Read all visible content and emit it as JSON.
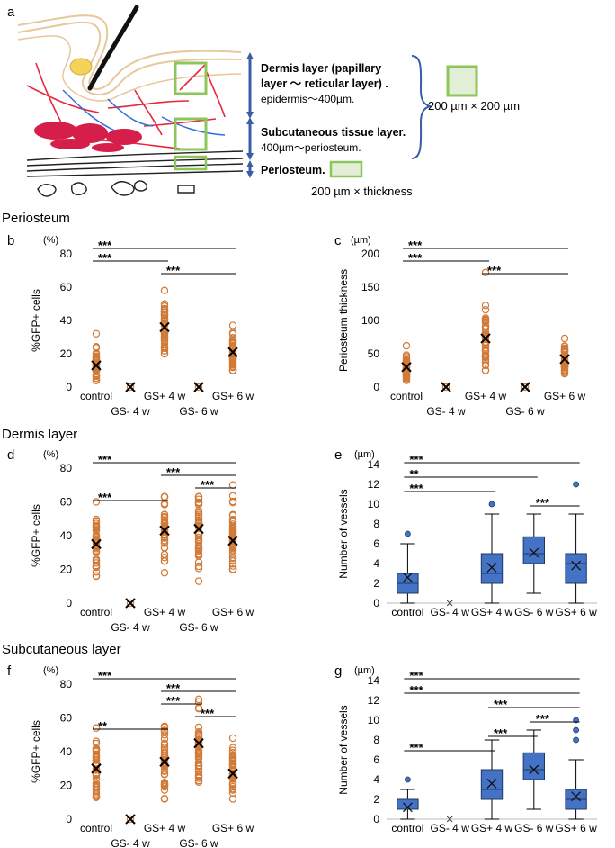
{
  "figure": {
    "panel_a_label": "a",
    "section_titles": [
      "Periosteum",
      "Dermis layer",
      "Subcutaneous layer"
    ],
    "schematic": {
      "dermis_title": "Dermis layer (papillary",
      "dermis_title2": "layer 〜 reticular layer) .",
      "dermis_range": "epidermis〜400µm.",
      "subq_title": "Subcutaneous tissue layer.",
      "subq_range": "400µm〜periosteum.",
      "periosteum_title": "Periosteum.",
      "roi_size_square": "200 µm × 200 µm",
      "roi_size_periosteum": "200 µm × thickness"
    },
    "colors": {
      "orange": "#d07a38",
      "blue": "#4472c4",
      "box_stroke": "#1f3864",
      "green": "#8dc65b",
      "green_fill": "#e2efd6",
      "arrow_blue": "#3a5da8"
    }
  },
  "chart_data": [
    {
      "panel": "b",
      "type": "scatter",
      "title": "Periosteum",
      "yunit": "(%)",
      "ylabel": "%GFP+ cells",
      "ylim": [
        0,
        80
      ],
      "yticks": [
        "0",
        "20",
        "40",
        "60",
        "80"
      ],
      "categories": [
        "control",
        "GS- 4 w",
        "GS+ 4 w",
        "GS- 6 w",
        "GS+ 6 w"
      ],
      "means": [
        13,
        0,
        36,
        0,
        21
      ],
      "ranges": [
        [
          4,
          32
        ],
        [
          0,
          0
        ],
        [
          20,
          58
        ],
        [
          0,
          0
        ],
        [
          10,
          37
        ]
      ],
      "sig": [
        {
          "from": 0,
          "to": 4,
          "label": "***"
        },
        {
          "from": 0,
          "to": 2,
          "label": "***"
        },
        {
          "from": 2,
          "to": 4,
          "label": "***"
        }
      ]
    },
    {
      "panel": "c",
      "type": "scatter",
      "yunit": "(µm)",
      "ylabel": "Periosteum thickness",
      "ylim": [
        0,
        200
      ],
      "yticks": [
        "0",
        "50",
        "100",
        "150",
        "200"
      ],
      "categories": [
        "control",
        "GS- 4 w",
        "GS+ 4 w",
        "GS- 6 w",
        "GS+ 6 w"
      ],
      "means": [
        30,
        0,
        73,
        0,
        42
      ],
      "ranges": [
        [
          10,
          62
        ],
        [
          0,
          0
        ],
        [
          25,
          172
        ],
        [
          0,
          0
        ],
        [
          20,
          73
        ]
      ],
      "sig": [
        {
          "from": 0,
          "to": 4,
          "label": "***"
        },
        {
          "from": 0,
          "to": 2,
          "label": "***"
        },
        {
          "from": 2,
          "to": 4,
          "label": "***"
        }
      ]
    },
    {
      "panel": "d",
      "type": "scatter",
      "title": "Dermis layer",
      "yunit": "(%)",
      "ylabel": "%GFP+ cells",
      "ylim": [
        0,
        80
      ],
      "yticks": [
        "0",
        "20",
        "40",
        "60",
        "80"
      ],
      "categories": [
        "control",
        "GS- 4 w",
        "GS+ 4 w",
        "GS- 6 w",
        "GS+ 6 w"
      ],
      "means": [
        35,
        0,
        43,
        44,
        37
      ],
      "ranges": [
        [
          16,
          60
        ],
        [
          0,
          0
        ],
        [
          18,
          63
        ],
        [
          13,
          63
        ],
        [
          20,
          70
        ]
      ],
      "sig": [
        {
          "from": 0,
          "to": 4,
          "label": "***"
        },
        {
          "from": 2,
          "to": 4,
          "label": "***"
        },
        {
          "from": 3,
          "to": 4,
          "label": "***"
        },
        {
          "from": 0,
          "to": 2,
          "label": "***"
        }
      ]
    },
    {
      "panel": "e",
      "type": "box",
      "yunit": "(µm)",
      "ylabel": "Number of vessels",
      "ylim": [
        0,
        14
      ],
      "yticks": [
        "0",
        "2",
        "4",
        "6",
        "8",
        "10",
        "12",
        "14"
      ],
      "categories": [
        "control",
        "GS- 4 w",
        "GS+ 4 w",
        "GS- 6 w",
        "GS+ 6 w"
      ],
      "boxes": [
        {
          "min": 0,
          "q1": 1,
          "median": 2,
          "q3": 3,
          "max": 6,
          "mean": 2.6,
          "outliers": [
            7
          ]
        },
        {
          "min": 0,
          "q1": 0,
          "median": 0,
          "q3": 0,
          "max": 0,
          "mean": 0,
          "outliers": []
        },
        {
          "min": 0,
          "q1": 2,
          "median": 3,
          "q3": 5,
          "max": 9,
          "mean": 3.6,
          "outliers": [
            10
          ]
        },
        {
          "min": 1,
          "q1": 4,
          "median": 5,
          "q3": 6.7,
          "max": 9,
          "mean": 5.1,
          "outliers": []
        },
        {
          "min": 0,
          "q1": 2,
          "median": 4,
          "q3": 5,
          "max": 9,
          "mean": 3.8,
          "outliers": [
            12
          ]
        }
      ],
      "sig": [
        {
          "from": 0,
          "to": 4,
          "label": "***"
        },
        {
          "from": 0,
          "to": 3,
          "label": "**"
        },
        {
          "from": 0,
          "to": 2,
          "label": "***"
        },
        {
          "from": 3,
          "to": 4,
          "label": "***"
        }
      ]
    },
    {
      "panel": "f",
      "type": "scatter",
      "title": "Subcutaneous layer",
      "yunit": "(%)",
      "ylabel": "%GFP+ cells",
      "ylim": [
        0,
        80
      ],
      "yticks": [
        "0",
        "20",
        "40",
        "60",
        "80"
      ],
      "categories": [
        "control",
        "GS- 4 w",
        "GS+ 4 w",
        "GS- 6 w",
        "GS+ 6 w"
      ],
      "means": [
        30,
        0,
        34,
        45,
        27
      ],
      "ranges": [
        [
          13,
          54
        ],
        [
          0,
          0
        ],
        [
          12,
          55
        ],
        [
          22,
          71
        ],
        [
          12,
          48
        ]
      ],
      "sig": [
        {
          "from": 0,
          "to": 4,
          "label": "***"
        },
        {
          "from": 2,
          "to": 4,
          "label": "***"
        },
        {
          "from": 2,
          "to": 3,
          "label": "***"
        },
        {
          "from": 3,
          "to": 4,
          "label": "***"
        },
        {
          "from": 0,
          "to": 2,
          "label": "**"
        }
      ]
    },
    {
      "panel": "g",
      "type": "box",
      "yunit": "(µm)",
      "ylabel": "Number of vessels",
      "ylim": [
        0,
        14
      ],
      "yticks": [
        "0",
        "2",
        "4",
        "6",
        "8",
        "10",
        "12",
        "14"
      ],
      "categories": [
        "control",
        "GS- 4 w",
        "GS+ 4 w",
        "GS- 6 w",
        "GS+ 6 w"
      ],
      "boxes": [
        {
          "min": 0,
          "q1": 1,
          "median": 1,
          "q3": 2,
          "max": 3,
          "mean": 1.2,
          "outliers": [
            4
          ]
        },
        {
          "min": 0,
          "q1": 0,
          "median": 0,
          "q3": 0,
          "max": 0,
          "mean": 0,
          "outliers": []
        },
        {
          "min": 0,
          "q1": 2,
          "median": 3,
          "q3": 5,
          "max": 8,
          "mean": 3.6,
          "outliers": []
        },
        {
          "min": 1,
          "q1": 4,
          "median": 5,
          "q3": 6.7,
          "max": 9,
          "mean": 5,
          "outliers": []
        },
        {
          "min": 0,
          "q1": 1,
          "median": 2,
          "q3": 3,
          "max": 6,
          "mean": 2.3,
          "outliers": [
            8,
            9,
            10
          ]
        }
      ],
      "sig": [
        {
          "from": 0,
          "to": 4,
          "label": "***"
        },
        {
          "from": 0,
          "to": 4,
          "label": "***"
        },
        {
          "from": 2,
          "to": 4,
          "label": "***"
        },
        {
          "from": 3,
          "to": 4,
          "label": "***"
        },
        {
          "from": 2,
          "to": 3,
          "label": "***"
        },
        {
          "from": 0,
          "to": 2,
          "label": "***"
        }
      ]
    }
  ]
}
